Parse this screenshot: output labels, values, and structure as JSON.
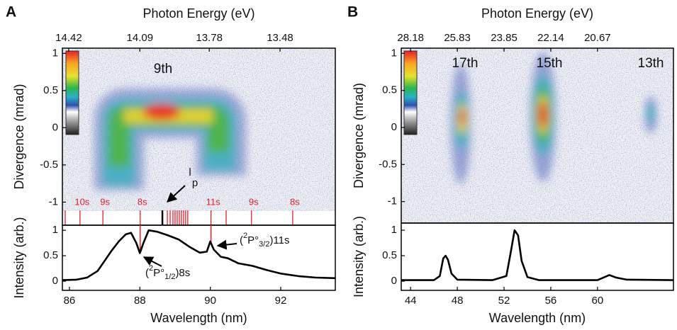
{
  "chart_data": [
    {
      "type": "image",
      "panel_label": "A",
      "x2_label": "Photon Energy (eV)",
      "y_label": "Divergence (mrad)",
      "xlim": [
        85.8,
        93.55
      ],
      "x2ticks": [
        {
          "value": 85.98,
          "label": "14.42"
        },
        {
          "value": 88.0,
          "label": "14.09"
        },
        {
          "value": 89.97,
          "label": "13.78"
        },
        {
          "value": 91.98,
          "label": "13.48"
        }
      ],
      "ylim": [
        -1.31,
        1.07
      ],
      "yticks": [
        -1,
        -0.5,
        0,
        0.5,
        1
      ],
      "annotations": [
        "9th"
      ],
      "marker_lines": {
        "color": "#e8202a",
        "x": [
          85.88,
          86.3,
          86.95,
          88.01,
          88.78,
          88.86,
          88.94,
          89.0,
          89.06,
          89.12,
          89.18,
          89.24,
          89.3,
          89.36,
          90.02,
          90.45,
          91.17,
          92.34
        ],
        "labels": [
          null,
          "10s",
          "9s",
          "8s",
          null,
          null,
          null,
          null,
          null,
          null,
          null,
          null,
          null,
          null,
          "11s",
          null,
          "9s",
          "8s"
        ]
      },
      "reference_line": {
        "color": "#000000",
        "x": 88.64,
        "labels": [
          "l",
          "p"
        ]
      }
    },
    {
      "type": "line",
      "x_label": "Wavelength (nm)",
      "y_label": "Intensity (arb.)",
      "color": "#000000",
      "x": [
        85.8,
        86.2,
        86.5,
        86.8,
        87.0,
        87.2,
        87.4,
        87.6,
        87.75,
        87.9,
        88.0,
        88.1,
        88.25,
        88.5,
        88.8,
        89.1,
        89.4,
        89.7,
        89.9,
        90.0,
        90.1,
        90.3,
        90.5,
        90.8,
        91.2,
        91.6,
        92.0,
        92.5,
        93.0,
        93.55
      ],
      "values": [
        0.02,
        0.03,
        0.07,
        0.2,
        0.4,
        0.6,
        0.78,
        0.92,
        0.95,
        0.75,
        0.55,
        0.75,
        1.0,
        0.97,
        0.9,
        0.82,
        0.68,
        0.56,
        0.58,
        0.78,
        0.62,
        0.48,
        0.45,
        0.35,
        0.3,
        0.22,
        0.15,
        0.1,
        0.07,
        0.06
      ],
      "xlim": [
        85.8,
        93.55
      ],
      "xticks": [
        86,
        88,
        90,
        92
      ],
      "ylim": [
        -0.18,
        1.1
      ],
      "yticks": [
        0,
        0.5,
        1
      ],
      "marker_lines": {
        "color": "#e8202a",
        "x": [
          88.01,
          90.02
        ]
      },
      "annotations": [
        {
          "parts": [
            "(",
            "2",
            "P°",
            "3/2",
            ")11s"
          ]
        },
        {
          "parts": [
            "(",
            "2",
            "P°",
            "1/2",
            ")8s"
          ]
        }
      ]
    },
    {
      "type": "image",
      "panel_label": "B",
      "x2_label": "Photon Energy (eV)",
      "y_label": "Divergence (mrad)",
      "xlim": [
        43.2,
        66.5
      ],
      "x2ticks": [
        {
          "value": 44.0,
          "label": "28.18"
        },
        {
          "value": 48.0,
          "label": "25.83"
        },
        {
          "value": 52.0,
          "label": "23.85"
        },
        {
          "value": 56.0,
          "label": "22.14"
        },
        {
          "value": 60.0,
          "label": "20.67"
        }
      ],
      "ylim": [
        -1.29,
        1.07
      ],
      "yticks": [
        -1,
        -0.5,
        0,
        0.5,
        1
      ],
      "annotations": [
        "17th",
        "15th",
        "13th"
      ]
    },
    {
      "type": "line",
      "x_label": "Wavelength (nm)",
      "y_label": "Intensity (arb.)",
      "color": "#000000",
      "x": [
        43.2,
        46.0,
        46.5,
        46.8,
        47.0,
        47.2,
        47.5,
        48.0,
        51.0,
        52.2,
        52.6,
        52.9,
        53.2,
        53.5,
        54.0,
        55.0,
        60.0,
        60.6,
        61.0,
        61.6,
        62.5,
        66.5
      ],
      "values": [
        0.02,
        0.02,
        0.1,
        0.45,
        0.5,
        0.42,
        0.15,
        0.03,
        0.02,
        0.1,
        0.6,
        1.0,
        0.9,
        0.4,
        0.08,
        0.02,
        0.02,
        0.08,
        0.12,
        0.07,
        0.03,
        0.02
      ],
      "xlim": [
        43.2,
        66.5
      ],
      "xticks": [
        44,
        48,
        52,
        56,
        60
      ],
      "ylim": [
        -0.18,
        1.14
      ],
      "yticks": [
        0,
        0.5,
        1
      ]
    }
  ]
}
